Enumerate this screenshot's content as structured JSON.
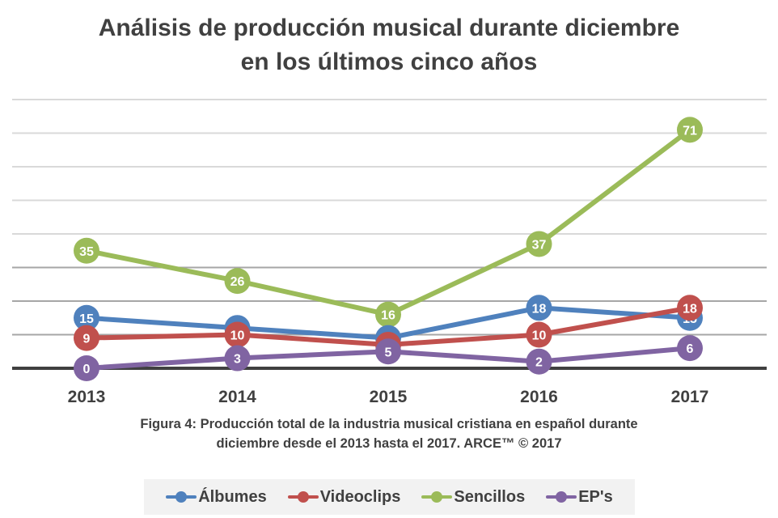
{
  "chart_data": {
    "type": "line",
    "title": "Análisis de producción musical durante diciembre en los últimos cinco años",
    "title_lines": [
      "Análisis de producción musical durante diciembre",
      "en los últimos cinco años"
    ],
    "caption_lines": [
      "Figura 4: Producción total de la industria musical cristiana en español durante",
      "diciembre desde el 2013 hasta el 2017.  ARCE™ © 2017"
    ],
    "xlabel": "",
    "ylabel": "",
    "categories": [
      "2013",
      "2014",
      "2015",
      "2016",
      "2017"
    ],
    "ylim": [
      0,
      80
    ],
    "ygrid_step": 10,
    "grid": true,
    "y_tick_labels_shown": false,
    "data_labels": true,
    "legend_position": "bottom",
    "series": [
      {
        "name": "Álbumes",
        "color": "#4f81bd",
        "values": [
          15,
          12,
          9,
          18,
          15
        ]
      },
      {
        "name": "Videoclips",
        "color": "#c0504d",
        "values": [
          9,
          10,
          7,
          10,
          18
        ]
      },
      {
        "name": "Sencillos",
        "color": "#9bbb59",
        "values": [
          35,
          26,
          16,
          37,
          71
        ]
      },
      {
        "name": "EP's",
        "color": "#8064a2",
        "values": [
          0,
          3,
          5,
          2,
          6
        ]
      }
    ]
  }
}
